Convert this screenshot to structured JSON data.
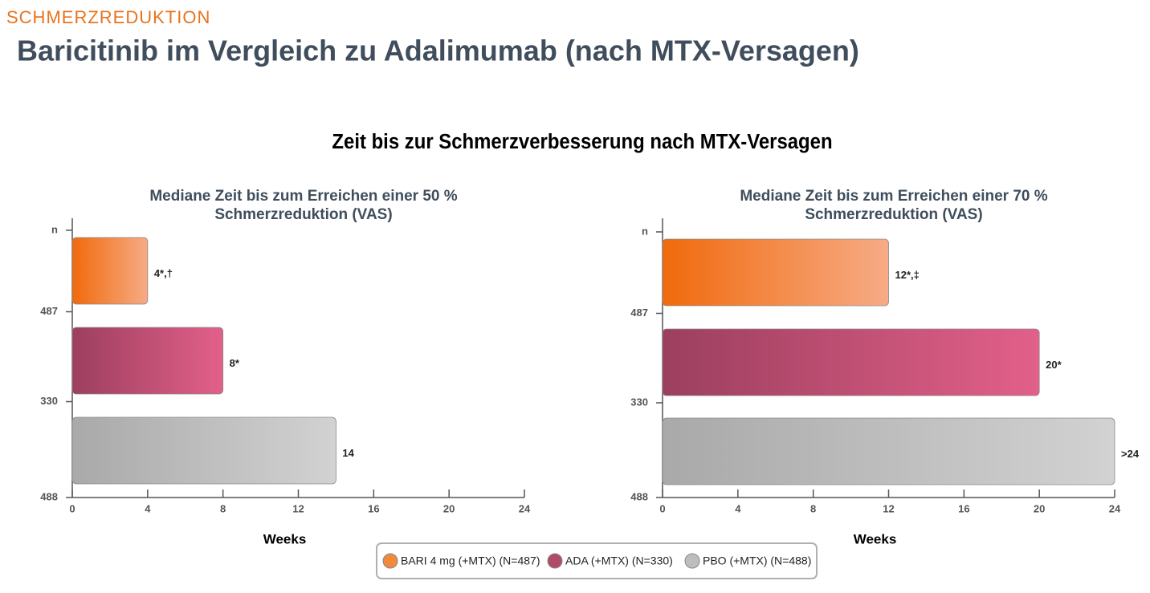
{
  "header": {
    "section": "SCHMERZREDUKTION",
    "title": "Baricitinib im Vergleich zu Adalimumab (nach MTX-Versagen)",
    "heading": "Zeit bis zur Schmerzverbesserung nach MTX-Versagen"
  },
  "chart_data": [
    {
      "type": "hbar",
      "title": [
        "Mediane Zeit bis zum Erreichen einer 50 %",
        "Schmerzreduktion (VAS)"
      ],
      "ylabel": "n",
      "xlabel": "Weeks",
      "categories": [
        "487",
        "330",
        "488"
      ],
      "values": [
        4,
        8,
        14
      ],
      "value_labels": [
        "4*,†",
        "8*",
        "14"
      ],
      "colors": [
        [
          "#f06a0c",
          "#f7ab86"
        ],
        [
          "#9c3f5e",
          "#e2608a"
        ],
        [
          "#a9a9a9",
          "#d2d2d2"
        ]
      ],
      "xlim": [
        0,
        24
      ],
      "xticks": [
        0,
        4,
        8,
        12,
        16,
        20,
        24
      ]
    },
    {
      "type": "hbar",
      "title": [
        "Mediane Zeit bis zum Erreichen einer 70 %",
        "Schmerzreduktion (VAS)"
      ],
      "ylabel": "n",
      "xlabel": "Weeks",
      "categories": [
        "487",
        "330",
        "488"
      ],
      "values": [
        12,
        20,
        24
      ],
      "value_labels": [
        "12*,‡",
        "20*",
        ">24"
      ],
      "colors": [
        [
          "#f06a0c",
          "#f7ab86"
        ],
        [
          "#9c3f5e",
          "#e2608a"
        ],
        [
          "#a9a9a9",
          "#d2d2d2"
        ]
      ],
      "xlim": [
        0,
        24
      ],
      "xticks": [
        0,
        4,
        8,
        12,
        16,
        20,
        24
      ]
    }
  ],
  "legend": {
    "entries": [
      {
        "label": "BARI 4 mg (+MTX) (N=487)",
        "color": "#f08a3c"
      },
      {
        "label": "ADA (+MTX) (N=330)",
        "color": "#b04a68"
      },
      {
        "label": "PBO (+MTX) (N=488)",
        "color": "#bdbdbd"
      }
    ]
  }
}
